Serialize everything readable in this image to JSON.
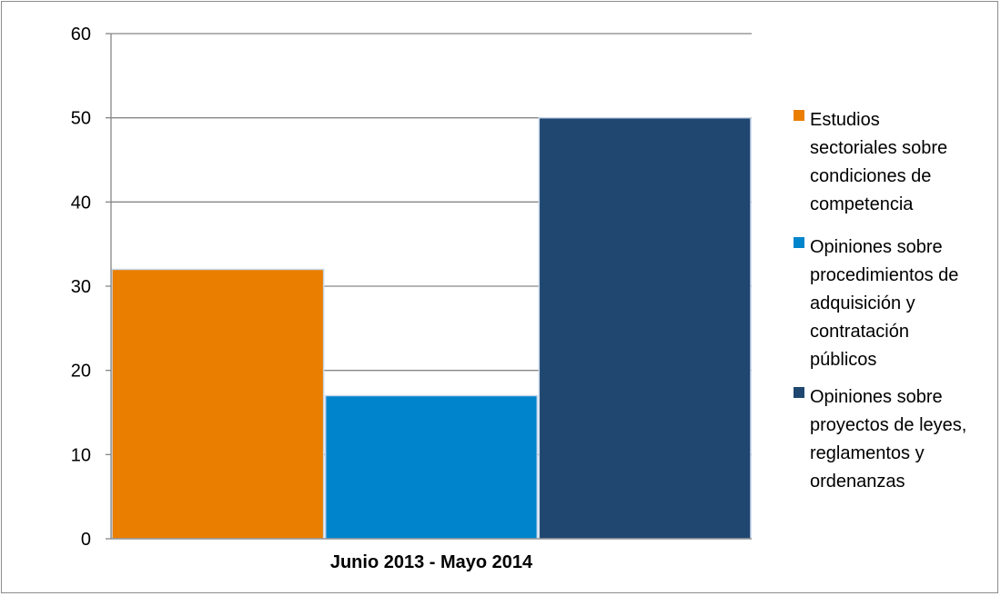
{
  "chart_data": {
    "type": "bar",
    "categories": [
      "Junio 2013 - Mayo 2014"
    ],
    "series": [
      {
        "name": "Estudios sectoriales sobre condiciones de competencia",
        "values": [
          32
        ],
        "color": "#ea7e00"
      },
      {
        "name": "Opiniones sobre procedimientos de adquisición y contratación públicos",
        "values": [
          17
        ],
        "color": "#0085cc"
      },
      {
        "name": "Opiniones sobre proyectos de leyes, reglamentos y ordenanzas",
        "values": [
          50
        ],
        "color": "#1f4770"
      }
    ],
    "ylim": [
      0,
      60
    ],
    "yticks": [
      0,
      10,
      20,
      30,
      40,
      50,
      60
    ],
    "grid": true,
    "legend_position": "right",
    "legend_lines": [
      [
        "Estudios",
        "sectoriales sobre",
        "condiciones de",
        "competencia"
      ],
      [
        "Opiniones sobre",
        "procedimientos de",
        "adquisición y",
        "contratación",
        "públicos"
      ],
      [
        "Opiniones sobre",
        "proyectos de leyes,",
        "reglamentos y",
        "ordenanzas"
      ]
    ],
    "xlabel": "",
    "ylabel": ""
  }
}
